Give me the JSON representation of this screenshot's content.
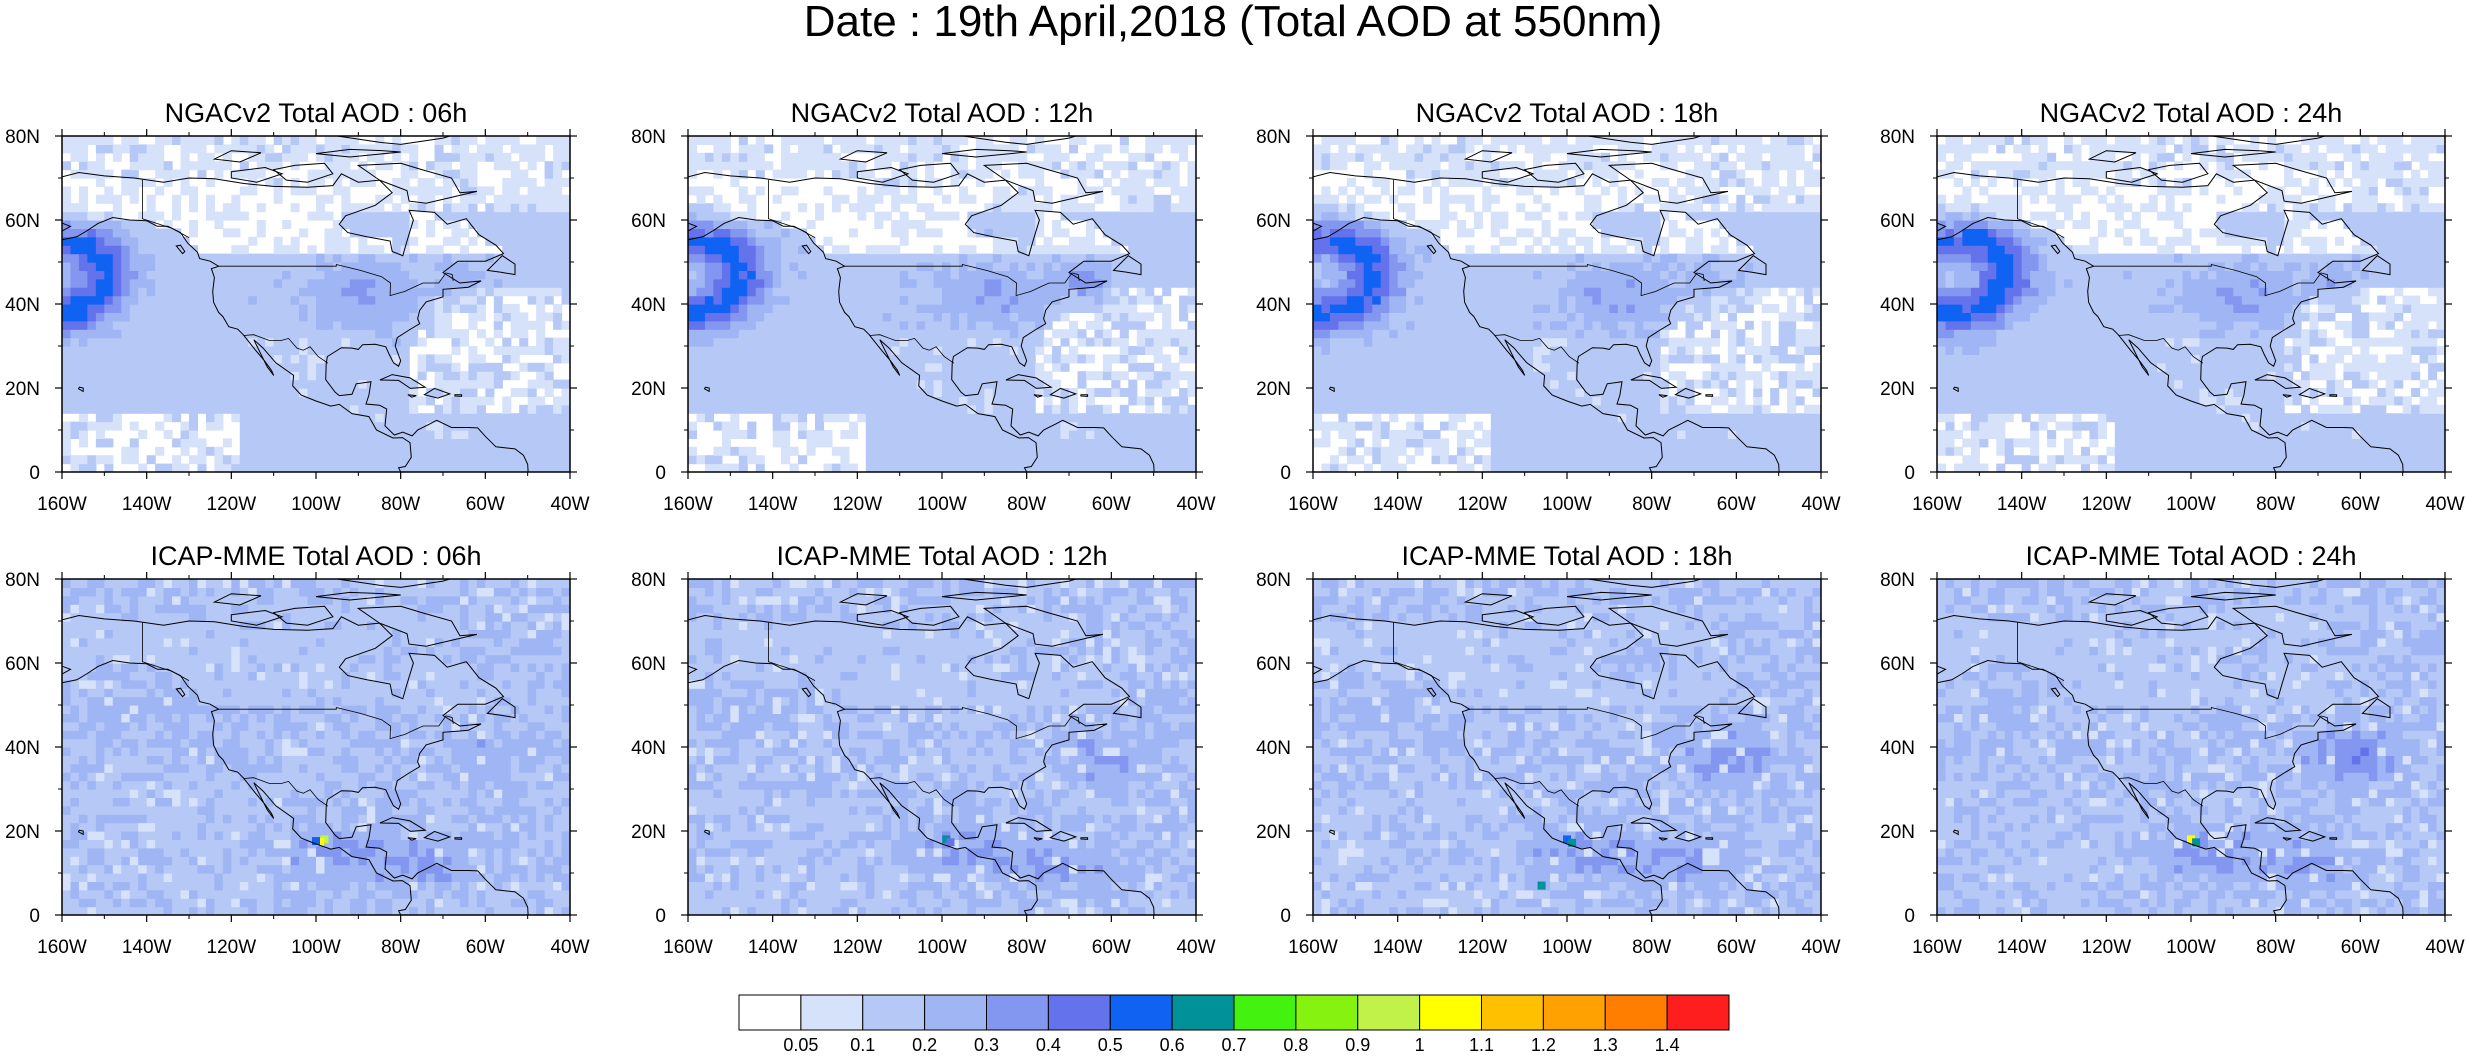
{
  "title": "Date : 19th April,2018 (Total AOD at 550nm)",
  "panels": [
    {
      "title": "NGACv2 Total AOD : 06h",
      "model": "ngac",
      "hour": 6
    },
    {
      "title": "NGACv2 Total AOD : 12h",
      "model": "ngac",
      "hour": 12
    },
    {
      "title": "NGACv2 Total AOD : 18h",
      "model": "ngac",
      "hour": 18
    },
    {
      "title": "NGACv2 Total AOD : 24h",
      "model": "ngac",
      "hour": 24
    },
    {
      "title": "ICAP-MME Total AOD : 06h",
      "model": "icap",
      "hour": 6
    },
    {
      "title": "ICAP-MME Total AOD : 12h",
      "model": "icap",
      "hour": 12
    },
    {
      "title": "ICAP-MME Total AOD : 18h",
      "model": "icap",
      "hour": 18
    },
    {
      "title": "ICAP-MME Total AOD : 24h",
      "model": "icap",
      "hour": 24
    }
  ],
  "axes": {
    "lat_ticks": [
      "80N",
      "60N",
      "40N",
      "20N",
      "0"
    ],
    "lat_values": [
      80,
      60,
      40,
      20,
      0
    ],
    "lon_ticks": [
      "160W",
      "140W",
      "120W",
      "100W",
      "80W",
      "60W",
      "40W"
    ],
    "lon_values": [
      -160,
      -140,
      -120,
      -100,
      -80,
      -60,
      -40
    ],
    "lon_range": [
      -160,
      -40
    ],
    "lat_range": [
      0,
      80
    ]
  },
  "colorbar": {
    "labels": [
      "0.05",
      "0.1",
      "0.2",
      "0.3",
      "0.4",
      "0.5",
      "0.6",
      "0.7",
      "0.8",
      "0.9",
      "1",
      "1.1",
      "1.2",
      "1.3",
      "1.4"
    ],
    "colors": [
      "#ffffff",
      "#d6e2fa",
      "#b6c8f5",
      "#9fb5f4",
      "#8397f0",
      "#6472ec",
      "#0f62f2",
      "#009199",
      "#44f20f",
      "#86f20f",
      "#c0f24a",
      "#ffff00",
      "#ffc000",
      "#ffa100",
      "#ff7e00",
      "#ff1e1e"
    ]
  }
}
